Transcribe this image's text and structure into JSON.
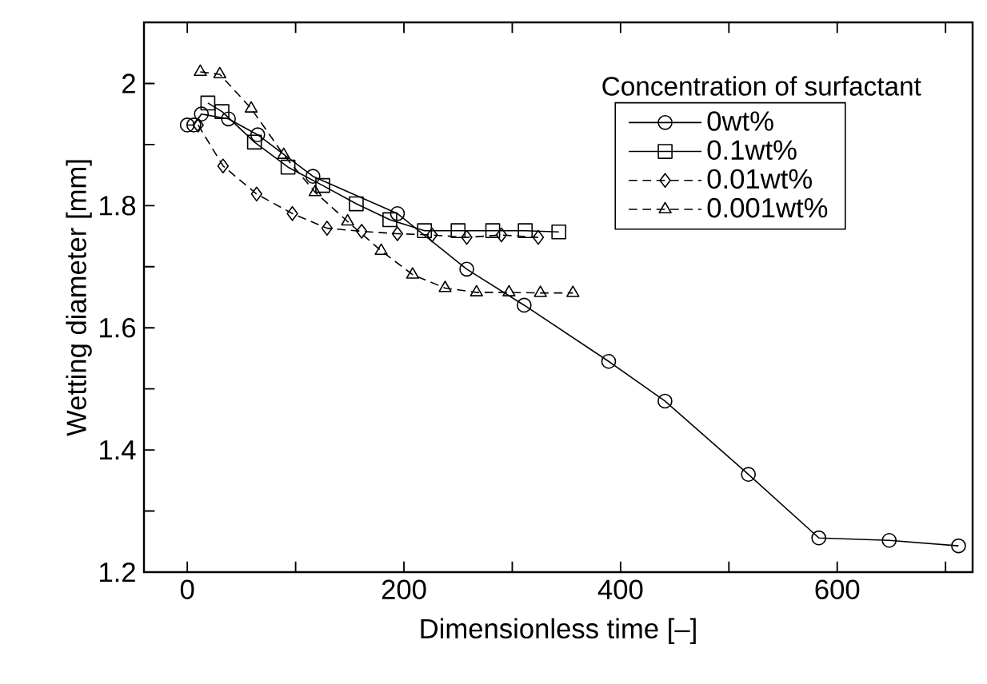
{
  "chart_data": {
    "type": "line",
    "xlabel": "Dimensionless time  [–]",
    "ylabel": "Wetting diameter  [mm]",
    "legend_title": "Concentration of surfactant",
    "legend": "top right",
    "xlim": [
      -40,
      725
    ],
    "ylim": [
      1.2,
      2.1
    ],
    "xticks": [
      0,
      {
        "value": 100,
        "label": null
      },
      200,
      {
        "value": 300,
        "label": null
      },
      400,
      {
        "value": 500,
        "label": null
      },
      600,
      {
        "value": 700,
        "label": null
      }
    ],
    "yticks": [
      1.2,
      {
        "value": 1.3,
        "label": null
      },
      1.4,
      {
        "value": 1.5,
        "label": null
      },
      1.6,
      {
        "value": 1.7,
        "label": null
      },
      1.8,
      {
        "value": 1.9,
        "label": null
      },
      2,
      {
        "value": 2.1,
        "label": null
      }
    ],
    "series": [
      {
        "name": "0wt%",
        "color": "#000000",
        "marker": "circle",
        "line_style": "solid",
        "x": [
          0,
          6,
          13,
          38,
          65,
          116,
          194,
          258,
          311,
          389,
          441,
          518,
          583,
          648,
          712
        ],
        "values": [
          1.932,
          1.932,
          1.95,
          1.942,
          1.916,
          1.848,
          1.787,
          1.696,
          1.637,
          1.545,
          1.48,
          1.36,
          1.256,
          1.252,
          1.243
        ]
      },
      {
        "name": "0.1wt%",
        "color": "#000000",
        "marker": "square",
        "line_style": "solid",
        "x": [
          19,
          32,
          62,
          93,
          125,
          156,
          187,
          219,
          250,
          282,
          312,
          343
        ],
        "values": [
          1.968,
          1.954,
          1.904,
          1.863,
          1.833,
          1.803,
          1.777,
          1.759,
          1.759,
          1.759,
          1.759,
          1.757
        ]
      },
      {
        "name": "0.01wt%",
        "color": "#000000",
        "marker": "diamond",
        "line_style": "dashed",
        "x": [
          10,
          33,
          64,
          97,
          129,
          161,
          194,
          226,
          258,
          290,
          324
        ],
        "values": [
          1.932,
          1.865,
          1.819,
          1.787,
          1.763,
          1.758,
          1.754,
          1.752,
          1.748,
          1.752,
          1.748
        ]
      },
      {
        "name": "0.001wt%",
        "color": "#000000",
        "marker": "triangle",
        "line_style": "dashed",
        "x": [
          12,
          30,
          59,
          89,
          118,
          148,
          179,
          208,
          238,
          267,
          297,
          326,
          356
        ],
        "values": [
          2.019,
          2.015,
          1.959,
          1.883,
          1.822,
          1.774,
          1.726,
          1.687,
          1.665,
          1.658,
          1.658,
          1.657,
          1.657
        ]
      }
    ]
  }
}
